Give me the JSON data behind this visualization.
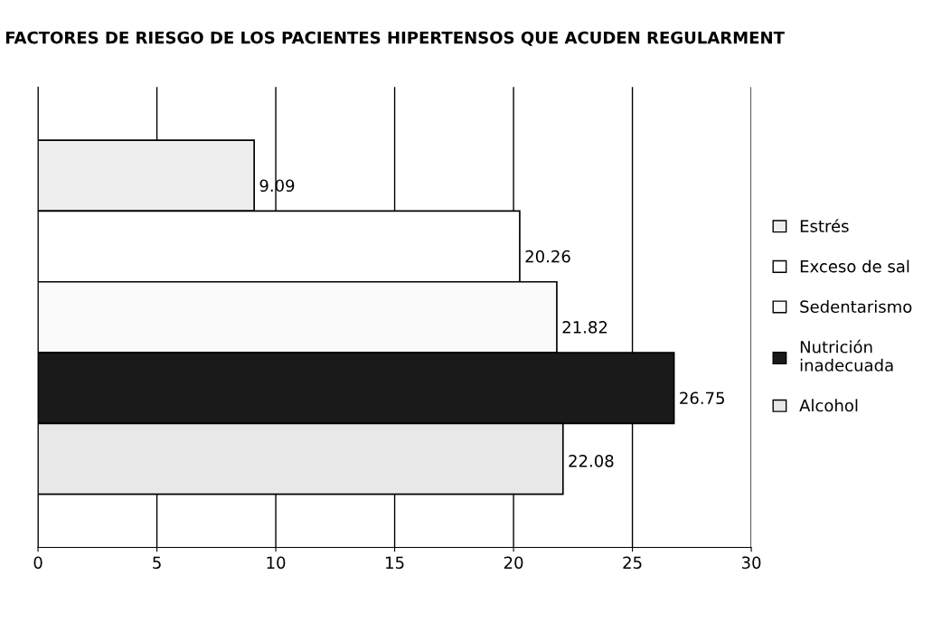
{
  "chart_data": {
    "type": "bar",
    "orientation": "horizontal",
    "title": "FACTORES DE RIESGO DE LOS PACIENTES HIPERTENSOS QUE ACUDEN REGULARMENT",
    "categories": [
      null
    ],
    "series": [
      {
        "name": "Estrés",
        "color": "#eeeeee",
        "values": [
          9.09
        ]
      },
      {
        "name": "Exceso de sal",
        "color": "#ffffff",
        "values": [
          20.26
        ]
      },
      {
        "name": "Sedentarismo",
        "color": "#fafafa",
        "values": [
          21.82
        ]
      },
      {
        "name": "Nutrición\ninadecuada",
        "color": "#1a1a1a",
        "values": [
          26.75
        ]
      },
      {
        "name": "Alcohol",
        "color": "#e8e8e8",
        "values": [
          22.08
        ]
      }
    ],
    "xlim": [
      0,
      30
    ],
    "xticks": [
      0,
      5,
      10,
      15,
      20,
      25,
      30
    ],
    "grid": "x",
    "legend": "right",
    "data_labels": true,
    "tick_labels": "x"
  }
}
